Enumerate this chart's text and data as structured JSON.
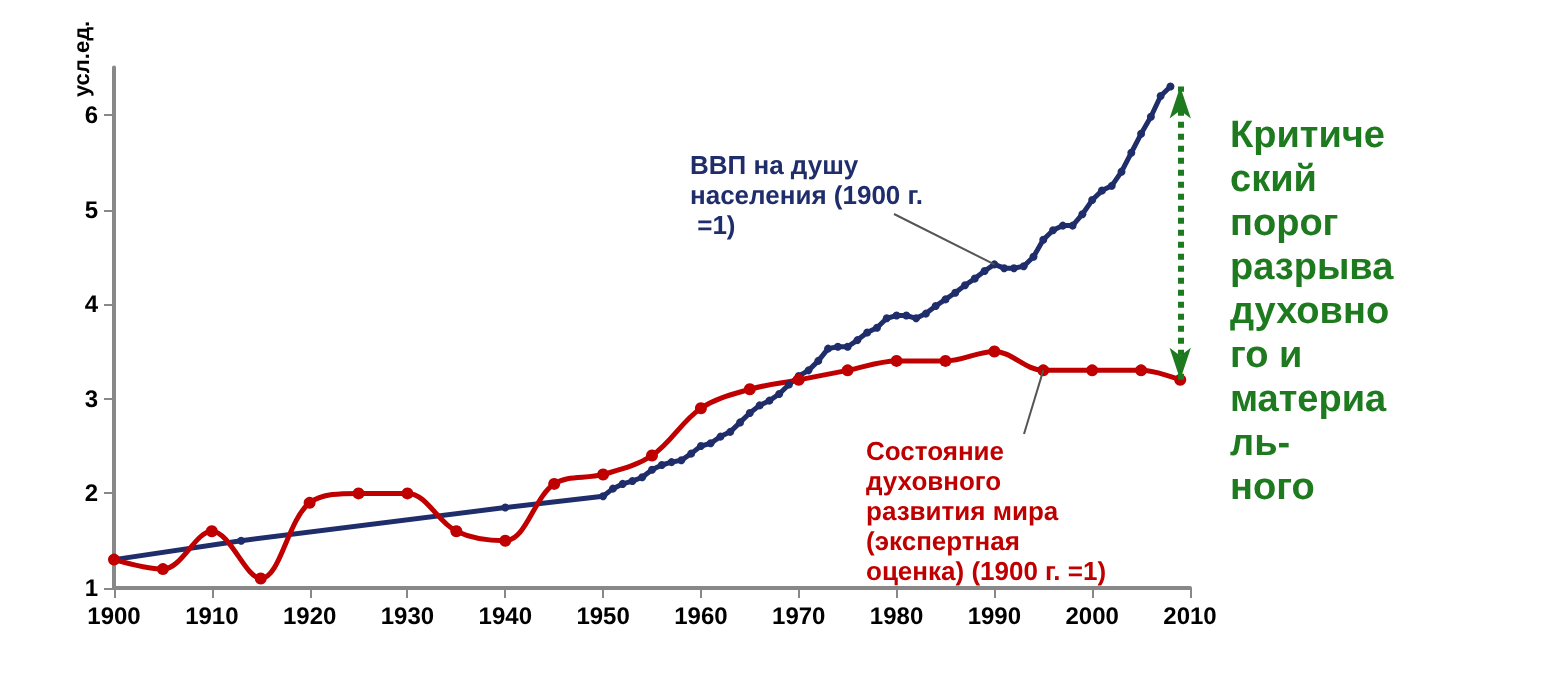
{
  "chart_data": {
    "type": "line",
    "ylabel": "усл.ед.",
    "series": [
      {
        "name": "ВВП на душу населения (1900 г. =1)",
        "color": "#1f2d6b",
        "x": [
          1900,
          1913,
          1940,
          1950,
          1951,
          1952,
          1953,
          1954,
          1955,
          1956,
          1957,
          1958,
          1959,
          1960,
          1961,
          1962,
          1963,
          1964,
          1965,
          1966,
          1967,
          1968,
          1969,
          1970,
          1971,
          1972,
          1973,
          1974,
          1975,
          1976,
          1977,
          1978,
          1979,
          1980,
          1981,
          1982,
          1983,
          1984,
          1985,
          1986,
          1987,
          1988,
          1989,
          1990,
          1991,
          1992,
          1993,
          1994,
          1995,
          1996,
          1997,
          1998,
          1999,
          2000,
          2001,
          2002,
          2003,
          2004,
          2005,
          2006,
          2007,
          2008
        ],
        "values": [
          1.3,
          1.5,
          1.85,
          1.97,
          2.05,
          2.1,
          2.13,
          2.17,
          2.25,
          2.3,
          2.33,
          2.35,
          2.42,
          2.5,
          2.53,
          2.6,
          2.65,
          2.75,
          2.85,
          2.93,
          2.98,
          3.05,
          3.15,
          3.24,
          3.3,
          3.4,
          3.53,
          3.55,
          3.55,
          3.62,
          3.7,
          3.75,
          3.85,
          3.88,
          3.88,
          3.85,
          3.9,
          3.98,
          4.05,
          4.12,
          4.2,
          4.27,
          4.35,
          4.42,
          4.38,
          4.38,
          4.4,
          4.5,
          4.68,
          4.78,
          4.83,
          4.83,
          4.95,
          5.1,
          5.2,
          5.25,
          5.4,
          5.6,
          5.8,
          5.98,
          6.2,
          6.3
        ]
      },
      {
        "name": "Состояние духовного развития мира (экспертная оценка) (1900 г. =1)",
        "color": "#c00000",
        "x": [
          1900,
          1905,
          1910,
          1915,
          1920,
          1925,
          1930,
          1935,
          1940,
          1945,
          1950,
          1955,
          1960,
          1965,
          1970,
          1975,
          1980,
          1985,
          1990,
          1995,
          2000,
          2005,
          2009
        ],
        "values": [
          1.3,
          1.2,
          1.6,
          1.1,
          1.9,
          2.0,
          2.0,
          1.6,
          1.5,
          2.1,
          2.2,
          2.4,
          2.9,
          3.1,
          3.2,
          3.3,
          3.4,
          3.4,
          3.5,
          3.3,
          3.3,
          3.3,
          3.2
        ]
      }
    ],
    "xlim": [
      1900,
      2010
    ],
    "xticks": [
      1900,
      1910,
      1920,
      1930,
      1940,
      1950,
      1960,
      1970,
      1980,
      1990,
      2000,
      2010
    ],
    "ylim": [
      1,
      6.5
    ],
    "yticks": [
      1,
      2,
      3,
      4,
      5,
      6
    ],
    "annotations": [
      "Критический порог разрыва духовного и материаль-ного"
    ],
    "marker": "circle",
    "grid": false,
    "legend": false
  }
}
